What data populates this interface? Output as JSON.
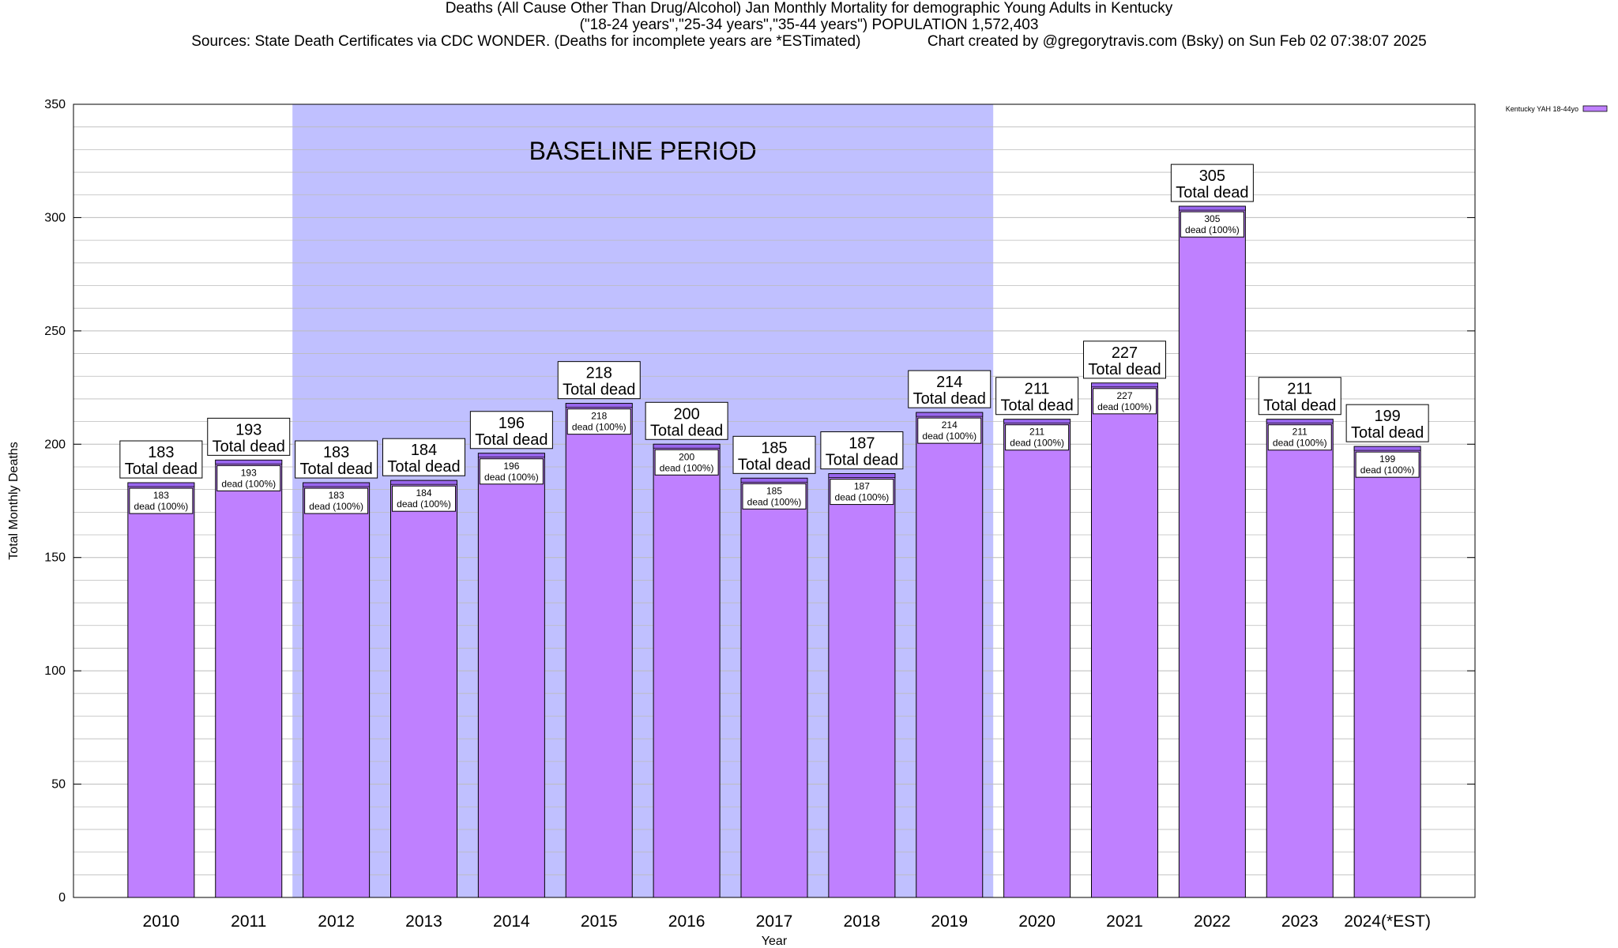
{
  "titles": {
    "line1": "Deaths (All Cause Other Than Drug/Alcohol) Jan Monthly Mortality for demographic Young Adults in Kentucky",
    "line2": "(\"18-24 years\",\"25-34 years\",\"35-44 years\") POPULATION 1,572,403",
    "line3_left": "Sources: State Death Certificates via CDC WONDER. (Deaths for incomplete years are *ESTimated)",
    "line3_right": "Chart created by @gregorytravis.com (Bsky) on Sun Feb 02 07:38:07 2025"
  },
  "chart_data": {
    "type": "bar",
    "title": "Deaths (All Cause Other Than Drug/Alcohol) Jan Monthly Mortality for demographic Young Adults in Kentucky",
    "xlabel": "Year",
    "ylabel": "Total Monthly Deaths",
    "ylim": [
      0,
      350
    ],
    "yticks": [
      0,
      50,
      100,
      150,
      200,
      250,
      300,
      350
    ],
    "grid": true,
    "legend_position": "top-right",
    "categories": [
      "2010",
      "2011",
      "2012",
      "2013",
      "2014",
      "2015",
      "2016",
      "2017",
      "2018",
      "2019",
      "2020",
      "2021",
      "2022",
      "2023",
      "2024(*EST)"
    ],
    "series": [
      {
        "name": "Kentucky YAH 18-44yo",
        "values": [
          183,
          193,
          183,
          184,
          196,
          218,
          200,
          185,
          187,
          214,
          211,
          227,
          305,
          211,
          199
        ]
      }
    ],
    "bar_top_label": "Total dead",
    "bar_inner_label": "dead (100%)",
    "baseline_period": {
      "label": "BASELINE PERIOD",
      "start": "2012",
      "end": "2019"
    },
    "colors": {
      "bar": "#bf80ff",
      "bar_cap": "#9966ee",
      "baseline": "#c0c0ff",
      "grid": "#bbbbbb"
    }
  }
}
